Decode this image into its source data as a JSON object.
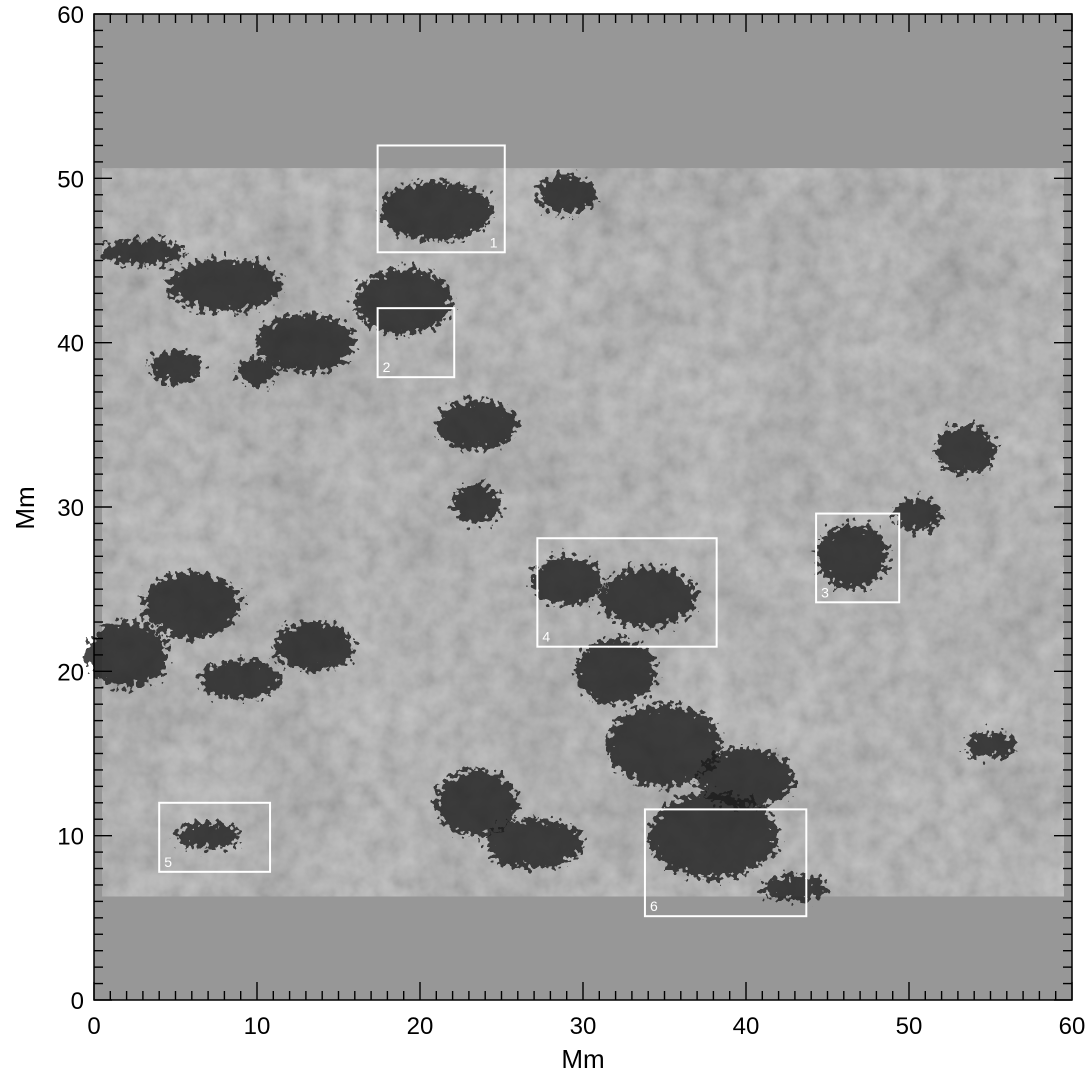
{
  "figure": {
    "x_axis": {
      "label": "Mm",
      "min": 0,
      "max": 60,
      "major_ticks": [
        0,
        10,
        20,
        30,
        40,
        50,
        60
      ],
      "minor_step": 1
    },
    "y_axis": {
      "label": "Mm",
      "min": 0,
      "max": 60,
      "major_ticks": [
        0,
        10,
        20,
        30,
        40,
        50,
        60
      ],
      "minor_step": 1
    },
    "observed_strip": {
      "y_min": 6.3,
      "y_max": 50.6
    },
    "colors": {
      "padding": "#979797",
      "background": "#a5a5a5",
      "dark_network": "#1e1e1e",
      "box_outline": "#ffffff"
    },
    "regions": [
      {
        "id": "1",
        "label": "1",
        "x0": 17.4,
        "x1": 25.2,
        "y0": 45.5,
        "y1": 52.0
      },
      {
        "id": "2",
        "label": "2",
        "x0": 17.4,
        "x1": 22.1,
        "y0": 37.9,
        "y1": 42.1
      },
      {
        "id": "3",
        "label": "3",
        "x0": 44.3,
        "x1": 49.4,
        "y0": 24.2,
        "y1": 29.6
      },
      {
        "id": "4",
        "label": "4",
        "x0": 27.2,
        "x1": 38.2,
        "y0": 21.5,
        "y1": 28.1
      },
      {
        "id": "5",
        "label": "5",
        "x0": 4.0,
        "x1": 10.8,
        "y0": 7.8,
        "y1": 12.0
      },
      {
        "id": "6",
        "label": "6",
        "x0": 33.8,
        "x1": 43.7,
        "y0": 5.1,
        "y1": 11.6
      }
    ],
    "dark_clusters": [
      {
        "x": 8,
        "y": 43.5,
        "rx": 3.5,
        "ry": 1.6
      },
      {
        "x": 3,
        "y": 45.5,
        "rx": 2.5,
        "ry": 0.8
      },
      {
        "x": 13,
        "y": 40,
        "rx": 3,
        "ry": 1.8
      },
      {
        "x": 10,
        "y": 38.2,
        "rx": 1.2,
        "ry": 0.8
      },
      {
        "x": 5,
        "y": 38.5,
        "rx": 1.6,
        "ry": 1
      },
      {
        "x": 19,
        "y": 42.5,
        "rx": 3,
        "ry": 2
      },
      {
        "x": 21,
        "y": 48,
        "rx": 3.5,
        "ry": 1.8
      },
      {
        "x": 29,
        "y": 49,
        "rx": 1.8,
        "ry": 1.2
      },
      {
        "x": 23.5,
        "y": 35,
        "rx": 2.5,
        "ry": 1.5
      },
      {
        "x": 23.5,
        "y": 30.2,
        "rx": 1.5,
        "ry": 1.2
      },
      {
        "x": 2,
        "y": 21,
        "rx": 2.5,
        "ry": 2
      },
      {
        "x": 6,
        "y": 24,
        "rx": 3,
        "ry": 2
      },
      {
        "x": 13.5,
        "y": 21.5,
        "rx": 2.5,
        "ry": 1.5
      },
      {
        "x": 9,
        "y": 19.5,
        "rx": 2.5,
        "ry": 1.2
      },
      {
        "x": 29,
        "y": 25.5,
        "rx": 2.2,
        "ry": 1.5
      },
      {
        "x": 34,
        "y": 24.5,
        "rx": 3,
        "ry": 1.8
      },
      {
        "x": 32,
        "y": 20,
        "rx": 2.5,
        "ry": 2
      },
      {
        "x": 35,
        "y": 15.5,
        "rx": 3.5,
        "ry": 2.5
      },
      {
        "x": 38,
        "y": 10,
        "rx": 4,
        "ry": 2.6
      },
      {
        "x": 40,
        "y": 13.5,
        "rx": 3,
        "ry": 1.8
      },
      {
        "x": 23.5,
        "y": 12,
        "rx": 2.5,
        "ry": 2
      },
      {
        "x": 27,
        "y": 9.5,
        "rx": 3,
        "ry": 1.5
      },
      {
        "x": 46.5,
        "y": 27,
        "rx": 2.2,
        "ry": 2
      },
      {
        "x": 50.5,
        "y": 29.5,
        "rx": 1.5,
        "ry": 1
      },
      {
        "x": 53.5,
        "y": 33.5,
        "rx": 1.8,
        "ry": 1.5
      },
      {
        "x": 55,
        "y": 15.5,
        "rx": 1.5,
        "ry": 0.8
      },
      {
        "x": 43,
        "y": 6.8,
        "rx": 2,
        "ry": 0.8
      },
      {
        "x": 7,
        "y": 10,
        "rx": 2,
        "ry": 0.8
      }
    ]
  }
}
